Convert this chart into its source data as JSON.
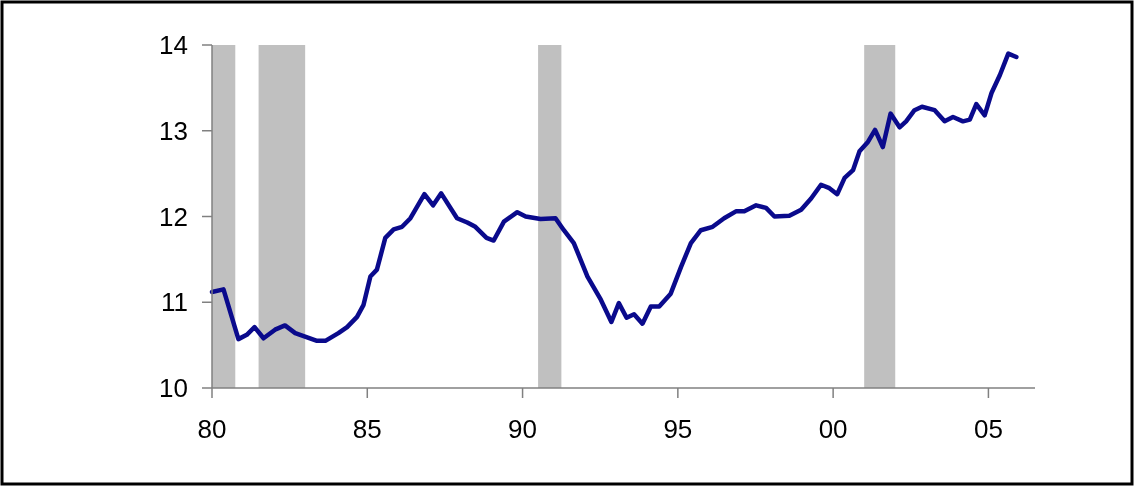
{
  "chart_data": {
    "type": "line",
    "x": [
      1980.0,
      1980.37,
      1980.85,
      1981.12,
      1981.37,
      1981.66,
      1982.03,
      1982.35,
      1982.68,
      1983.38,
      1983.65,
      1984.07,
      1984.35,
      1984.67,
      1984.88,
      1985.1,
      1985.31,
      1985.58,
      1985.85,
      1986.12,
      1986.39,
      1986.84,
      1987.12,
      1987.38,
      1987.89,
      1988.22,
      1988.48,
      1988.84,
      1989.07,
      1989.4,
      1989.83,
      1990.1,
      1990.58,
      1991.06,
      1991.33,
      1991.65,
      1992.09,
      1992.52,
      1992.86,
      1993.1,
      1993.35,
      1993.59,
      1993.86,
      1994.13,
      1994.4,
      1994.77,
      1995.1,
      1995.42,
      1995.74,
      1996.12,
      1996.49,
      1996.87,
      1997.14,
      1997.52,
      1997.84,
      1998.11,
      1998.59,
      1998.97,
      1999.29,
      1999.61,
      1999.88,
      2000.13,
      2000.37,
      2000.64,
      2000.85,
      2001.12,
      2001.35,
      2001.6,
      2001.85,
      2002.14,
      2002.35,
      2002.62,
      2002.86,
      2003.27,
      2003.59,
      2003.86,
      2004.18,
      2004.4,
      2004.61,
      2004.88,
      2005.1,
      2005.37,
      2005.64,
      2005.9
    ],
    "series": [
      {
        "color": "#0a0a8c",
        "values": [
          11.12,
          11.15,
          10.57,
          10.62,
          10.71,
          10.58,
          10.68,
          10.73,
          10.64,
          10.55,
          10.55,
          10.64,
          10.71,
          10.83,
          10.97,
          11.3,
          11.38,
          11.75,
          11.85,
          11.88,
          11.98,
          12.26,
          12.13,
          12.27,
          11.98,
          11.93,
          11.88,
          11.75,
          11.72,
          11.94,
          12.05,
          12.0,
          11.97,
          11.98,
          11.84,
          11.69,
          11.3,
          11.03,
          10.77,
          10.99,
          10.82,
          10.86,
          10.75,
          10.95,
          10.95,
          11.1,
          11.41,
          11.69,
          11.84,
          11.88,
          11.98,
          12.06,
          12.06,
          12.13,
          12.1,
          12.0,
          12.01,
          12.08,
          12.21,
          12.37,
          12.33,
          12.26,
          12.45,
          12.54,
          12.76,
          12.87,
          13.01,
          12.81,
          13.2,
          13.04,
          13.11,
          13.24,
          13.28,
          13.24,
          13.11,
          13.16,
          13.11,
          13.13,
          13.31,
          13.18,
          13.44,
          13.65,
          13.9,
          13.86
        ]
      }
    ],
    "xlim": [
      1980,
      2006.5
    ],
    "xticks": [
      {
        "value": 1980,
        "label": "80"
      },
      {
        "value": 1985,
        "label": "85"
      },
      {
        "value": 1990,
        "label": "90"
      },
      {
        "value": 1995,
        "label": "95"
      },
      {
        "value": 2000,
        "label": "00"
      },
      {
        "value": 2005,
        "label": "05"
      }
    ],
    "ylim": [
      10,
      14
    ],
    "yticks": [
      10,
      11,
      12,
      13,
      14
    ],
    "bands": [
      {
        "axis": "x",
        "from": 1980,
        "to": 1980.75,
        "color": "#c0c0c0"
      },
      {
        "axis": "x",
        "from": 1981.5,
        "to": 1983,
        "color": "#c0c0c0"
      },
      {
        "axis": "x",
        "from": 1990.5,
        "to": 1991.25,
        "color": "#c0c0c0"
      },
      {
        "axis": "x",
        "from": 2001,
        "to": 2002,
        "color": "#c0c0c0"
      }
    ],
    "grid": false,
    "line_style": "solid",
    "marker": "none"
  }
}
